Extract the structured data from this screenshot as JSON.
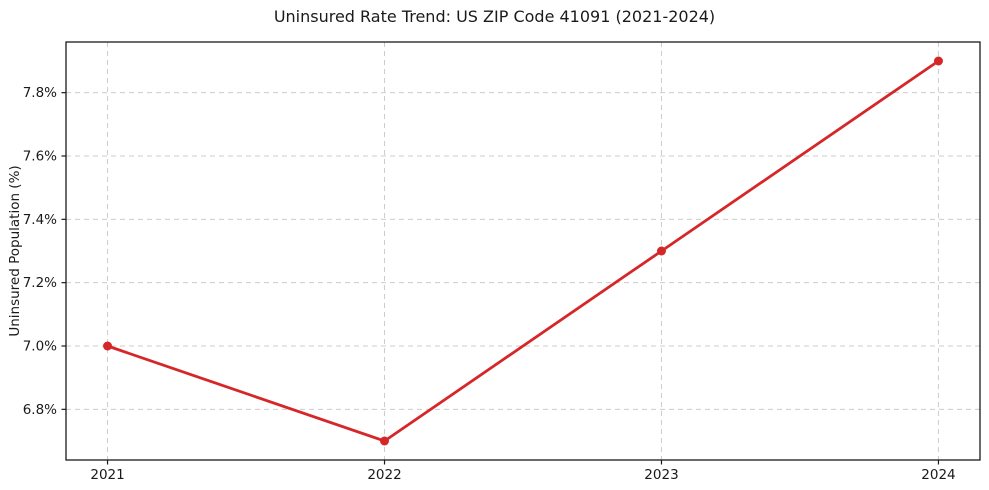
{
  "chart_data": {
    "type": "line",
    "title": "Uninsured Rate Trend: US ZIP Code 41091 (2021-2024)",
    "xlabel": "",
    "ylabel": "Uninsured Population (%)",
    "categories": [
      "2021",
      "2022",
      "2023",
      "2024"
    ],
    "series": [
      {
        "name": "Uninsured Population (%)",
        "values": [
          7.0,
          6.7,
          7.3,
          7.9
        ],
        "color": "#d62728",
        "marker": "circle"
      }
    ],
    "yticks": [
      6.8,
      7.0,
      7.2,
      7.4,
      7.6,
      7.8
    ],
    "ytick_labels": [
      "6.8%",
      "7.0%",
      "7.2%",
      "7.4%",
      "7.6%",
      "7.8%"
    ],
    "ylim": [
      6.64,
      7.96
    ],
    "grid": true,
    "grid_style": "dashed",
    "legend_position": "none",
    "colors": {
      "line": "#d62728",
      "grid": "#cccccc",
      "axis": "#1a1a1a",
      "text": "#1a1a1a",
      "background": "#ffffff"
    }
  }
}
